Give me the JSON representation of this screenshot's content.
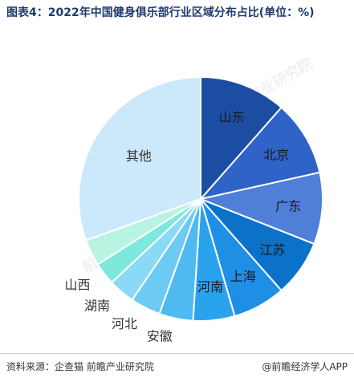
{
  "title": "图表4：2022年中国健身俱乐部行业区域分布占比(单位：%)",
  "source": "资料来源：企查猫 前瞻产业研究院",
  "brand": "@前瞻经济学人APP",
  "watermark": "前瞻产业研究院",
  "chart_data": {
    "type": "pie",
    "title": "图表4：2022年中国健身俱乐部行业区域分布占比(单位：%)",
    "categories": [
      "山东",
      "北京",
      "广东",
      "江苏",
      "上海",
      "河南",
      "安徽",
      "河北",
      "湖南",
      "山西",
      "",
      "其他"
    ],
    "values": [
      11.5,
      10.0,
      9.5,
      7.5,
      7.0,
      5.5,
      4.5,
      4.0,
      3.5,
      3.0,
      3.5,
      30.5
    ],
    "colors": [
      "#1b4ea3",
      "#2f63c8",
      "#4f7fd6",
      "#0c72c9",
      "#1f8fe6",
      "#2aa3ef",
      "#4dbaf2",
      "#6dcaf3",
      "#8ad9f5",
      "#7fe8dc",
      "#b9f3e2",
      "#cce8fb"
    ],
    "legend": "none"
  }
}
